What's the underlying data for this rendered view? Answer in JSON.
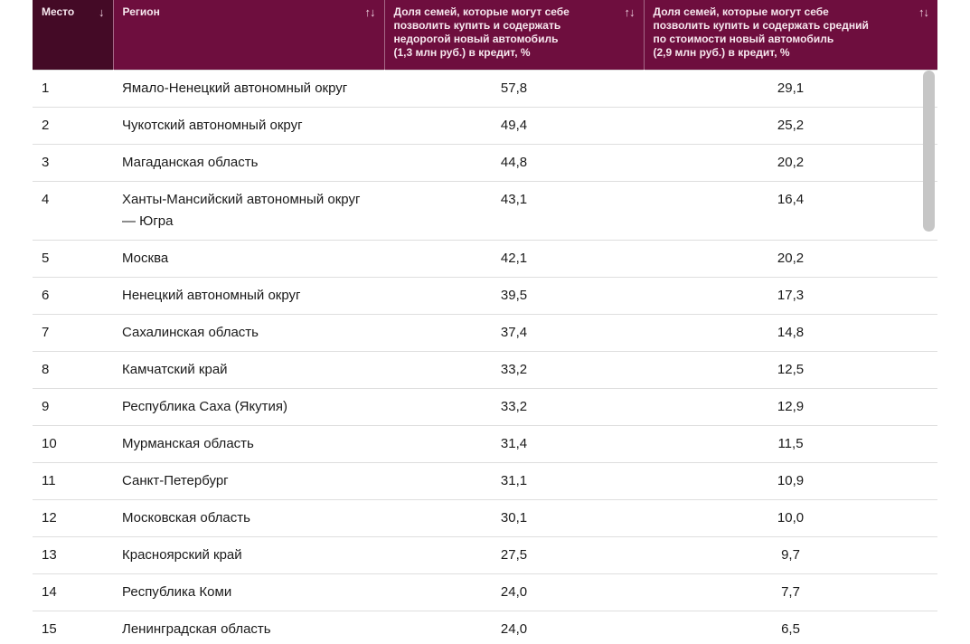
{
  "header": {
    "columns": [
      {
        "id": "place",
        "label": "Место",
        "sort": "↓"
      },
      {
        "id": "region",
        "label": "Регион",
        "sort": "↑↓"
      },
      {
        "id": "cheap",
        "label": "Доля семей, которые могут себе\nпозволить купить и содержать\nнедорогой новый автомобиль\n(1,3 млн руб.) в кредит, %",
        "sort": "↑↓"
      },
      {
        "id": "mid",
        "label": "Доля семей, которые могут себе\nпозволить купить и содержать средний\nпо стоимости новый автомобиль\n(2,9 млн руб.) в кредит, %",
        "sort": "↑↓"
      }
    ]
  },
  "rows": [
    {
      "place": "1",
      "region": "Ямало-Ненецкий автономный округ",
      "cheap": "57,8",
      "mid": "29,1"
    },
    {
      "place": "2",
      "region": "Чукотский автономный округ",
      "cheap": "49,4",
      "mid": "25,2"
    },
    {
      "place": "3",
      "region": "Магаданская область",
      "cheap": "44,8",
      "mid": "20,2"
    },
    {
      "place": "4",
      "region": "Ханты-Мансийский автономный округ\n— Югра",
      "cheap": "43,1",
      "mid": "16,4"
    },
    {
      "place": "5",
      "region": "Москва",
      "cheap": "42,1",
      "mid": "20,2"
    },
    {
      "place": "6",
      "region": "Ненецкий автономный округ",
      "cheap": "39,5",
      "mid": "17,3"
    },
    {
      "place": "7",
      "region": "Сахалинская область",
      "cheap": "37,4",
      "mid": "14,8"
    },
    {
      "place": "8",
      "region": "Камчатский край",
      "cheap": "33,2",
      "mid": "12,5"
    },
    {
      "place": "9",
      "region": "Республика Саха (Якутия)",
      "cheap": "33,2",
      "mid": "12,9"
    },
    {
      "place": "10",
      "region": "Мурманская область",
      "cheap": "31,4",
      "mid": "11,5"
    },
    {
      "place": "11",
      "region": "Санкт-Петербург",
      "cheap": "31,1",
      "mid": "10,9"
    },
    {
      "place": "12",
      "region": "Московская область",
      "cheap": "30,1",
      "mid": "10,0"
    },
    {
      "place": "13",
      "region": "Красноярский край",
      "cheap": "27,5",
      "mid": "9,7"
    },
    {
      "place": "14",
      "region": "Республика Коми",
      "cheap": "24,0",
      "mid": "7,7"
    },
    {
      "place": "15",
      "region": "Ленинградская область",
      "cheap": "24,0",
      "mid": "6,5"
    }
  ],
  "colors": {
    "header_bg": "#6e0e3e",
    "place_header_bg": "#440a26",
    "header_text": "#f6e7ee",
    "body_text": "#1a1a1a",
    "row_border": "#dedede",
    "scrollbar": "#c6c6c6"
  }
}
